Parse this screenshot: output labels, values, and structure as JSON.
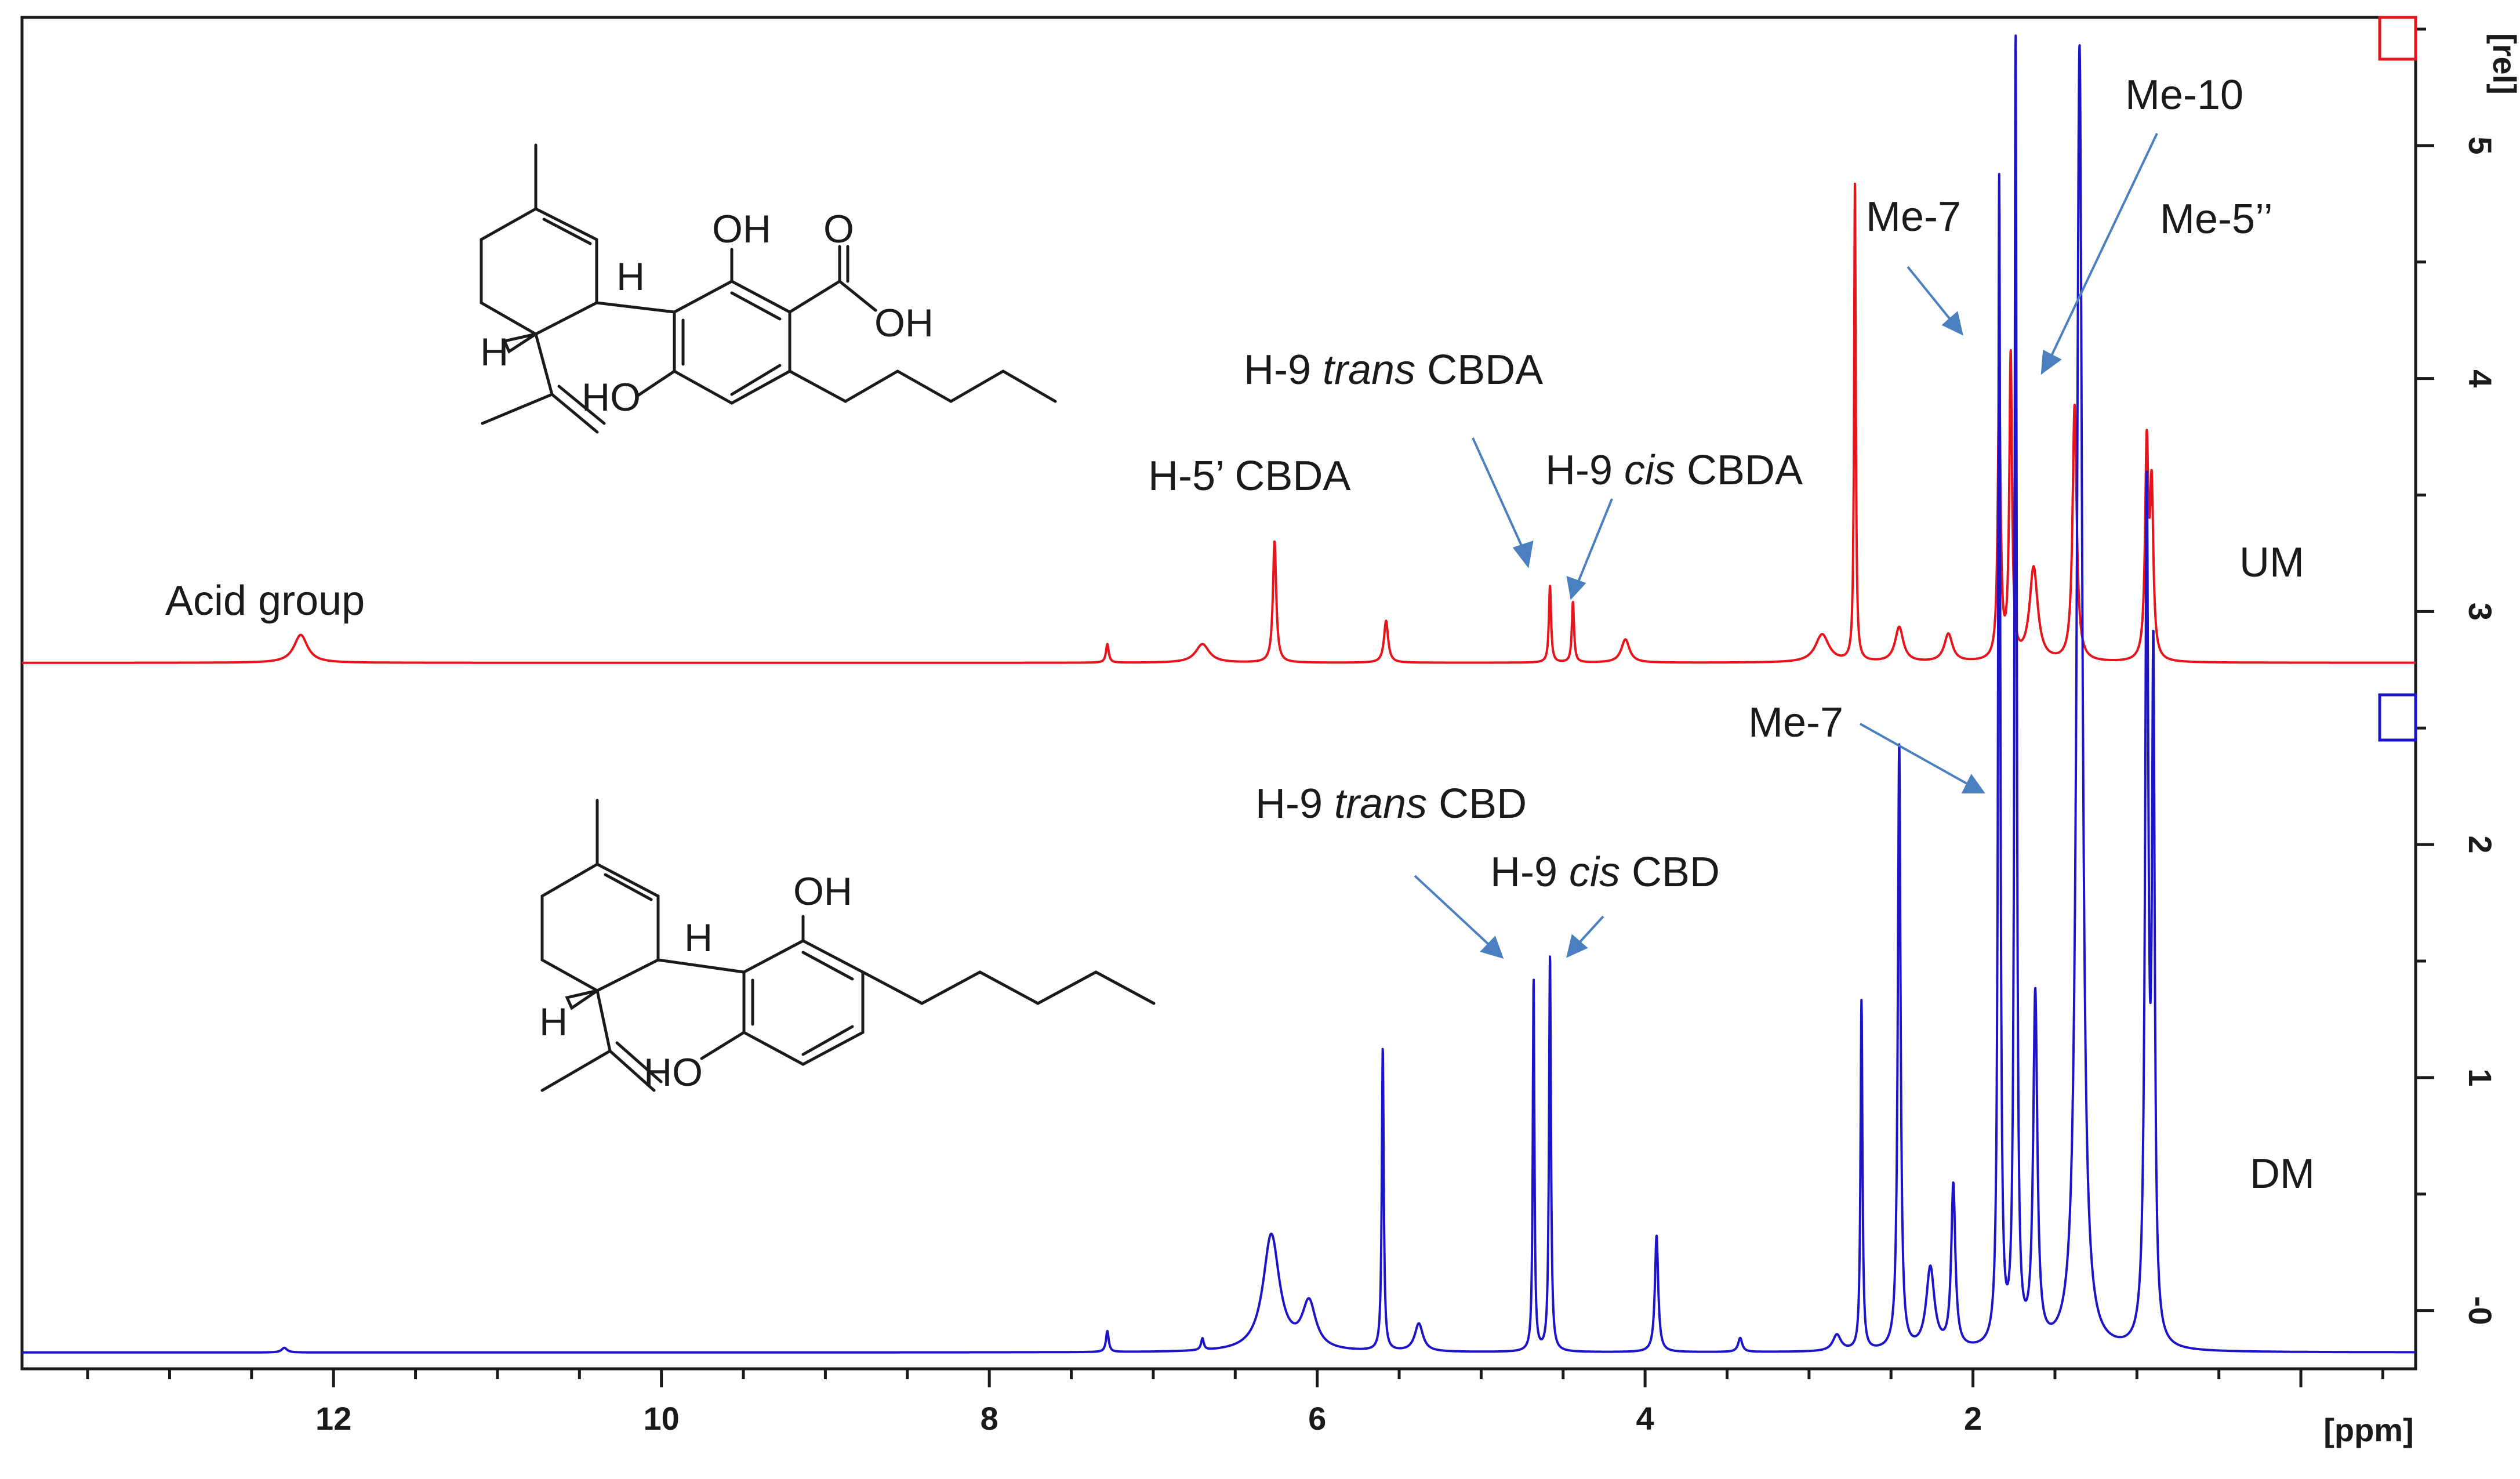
{
  "chart_data": {
    "type": "line",
    "xlabel": "[ppm]",
    "ylabel": "[rel]",
    "xlim": [
      13.9,
      -0.7
    ],
    "ylim": [
      -0.25,
      5.55
    ],
    "x_ticks": [
      "12",
      "10",
      "8",
      "6",
      "4",
      "2"
    ],
    "y_ticks": [
      "-0",
      "1",
      "2",
      "3",
      "4",
      "5"
    ],
    "x_reversed": true,
    "grid": false,
    "series": [
      {
        "name": "UM",
        "color": "#e8141b",
        "baseline": 2.78,
        "peaks": [
          {
            "ppm": 12.2,
            "height": 0.12,
            "width": 0.05
          },
          {
            "ppm": 7.28,
            "height": 0.08,
            "width": 0.01
          },
          {
            "ppm": 6.7,
            "height": 0.08,
            "width": 0.05
          },
          {
            "ppm": 6.26,
            "height": 0.52,
            "width": 0.012
          },
          {
            "ppm": 5.58,
            "height": 0.18,
            "width": 0.015
          },
          {
            "ppm": 4.58,
            "height": 0.33,
            "width": 0.008
          },
          {
            "ppm": 4.44,
            "height": 0.26,
            "width": 0.008
          },
          {
            "ppm": 4.12,
            "height": 0.1,
            "width": 0.03
          },
          {
            "ppm": 2.92,
            "height": 0.12,
            "width": 0.05
          },
          {
            "ppm": 2.72,
            "height": 2.06,
            "width": 0.006
          },
          {
            "ppm": 2.45,
            "height": 0.15,
            "width": 0.03
          },
          {
            "ppm": 2.15,
            "height": 0.12,
            "width": 0.03
          },
          {
            "ppm": 1.84,
            "height": 1.2,
            "width": 0.01
          },
          {
            "ppm": 1.77,
            "height": 1.3,
            "width": 0.01
          },
          {
            "ppm": 1.63,
            "height": 0.4,
            "width": 0.03
          },
          {
            "ppm": 1.38,
            "height": 1.1,
            "width": 0.015
          },
          {
            "ppm": 0.94,
            "height": 0.9,
            "width": 0.012
          },
          {
            "ppm": 0.91,
            "height": 0.7,
            "width": 0.012
          }
        ]
      },
      {
        "name": "DM",
        "color": "#1c14c8",
        "baseline": -0.18,
        "peaks": [
          {
            "ppm": 12.3,
            "height": 0.02,
            "width": 0.02
          },
          {
            "ppm": 7.28,
            "height": 0.09,
            "width": 0.01
          },
          {
            "ppm": 6.7,
            "height": 0.05,
            "width": 0.01
          },
          {
            "ppm": 6.28,
            "height": 0.5,
            "width": 0.06
          },
          {
            "ppm": 6.05,
            "height": 0.2,
            "width": 0.05
          },
          {
            "ppm": 5.6,
            "height": 1.3,
            "width": 0.007
          },
          {
            "ppm": 5.38,
            "height": 0.12,
            "width": 0.03
          },
          {
            "ppm": 4.68,
            "height": 1.6,
            "width": 0.006
          },
          {
            "ppm": 4.58,
            "height": 1.7,
            "width": 0.007
          },
          {
            "ppm": 3.93,
            "height": 0.5,
            "width": 0.012
          },
          {
            "ppm": 3.42,
            "height": 0.06,
            "width": 0.015
          },
          {
            "ppm": 2.83,
            "height": 0.07,
            "width": 0.03
          },
          {
            "ppm": 2.68,
            "height": 1.5,
            "width": 0.007
          },
          {
            "ppm": 2.45,
            "height": 2.6,
            "width": 0.01
          },
          {
            "ppm": 2.26,
            "height": 0.35,
            "width": 0.03
          },
          {
            "ppm": 2.12,
            "height": 0.7,
            "width": 0.015
          },
          {
            "ppm": 1.84,
            "height": 5.0,
            "width": 0.008
          },
          {
            "ppm": 1.74,
            "height": 5.6,
            "width": 0.008
          },
          {
            "ppm": 1.62,
            "height": 1.5,
            "width": 0.015
          },
          {
            "ppm": 1.35,
            "height": 5.6,
            "width": 0.02
          },
          {
            "ppm": 0.94,
            "height": 3.6,
            "width": 0.012
          },
          {
            "ppm": 0.9,
            "height": 2.8,
            "width": 0.01
          }
        ]
      }
    ],
    "annotations": [
      {
        "text": "Acid group"
      },
      {
        "text": "H-5’ CBDA"
      },
      {
        "pre": "H-9 ",
        "ital": "trans",
        "post": " CBDA"
      },
      {
        "pre": "H-9 ",
        "ital": "cis",
        "post": " CBDA"
      },
      {
        "text": "Me-7"
      },
      {
        "text": "Me-10"
      },
      {
        "text": "Me-5’’"
      },
      {
        "text": "UM"
      },
      {
        "pre": "H-9 ",
        "ital": "trans",
        "post": " CBD"
      },
      {
        "pre": "H-9 ",
        "ital": "cis",
        "post": " CBD"
      },
      {
        "text": "Me-7"
      },
      {
        "text": "DM"
      }
    ],
    "molecule_labels": {
      "cbda": [
        "OH",
        "O",
        "OH",
        "HO",
        "H",
        "H"
      ],
      "cbd": [
        "OH",
        "HO",
        "H",
        "H"
      ]
    }
  }
}
